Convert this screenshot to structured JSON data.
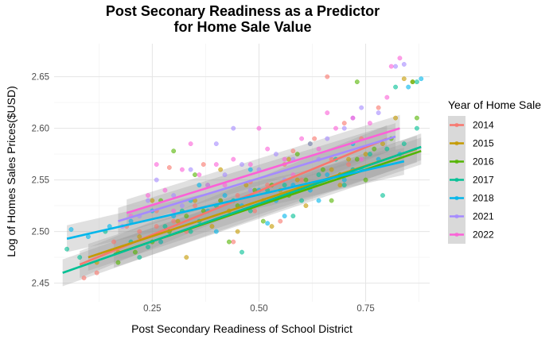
{
  "chart_data": {
    "type": "scatter",
    "title_lines": [
      "Post Seconary Readiness as a Predictor",
      "for Home Sale Value"
    ],
    "xlabel": "Post Secondary Readiness of School District",
    "ylabel": "Log of Homes Sales Prices($USD)",
    "xlim": [
      0.02,
      0.9
    ],
    "ylim": [
      2.432,
      2.682
    ],
    "x_ticks": [
      0.25,
      0.5,
      0.75
    ],
    "x_tick_labels": [
      "0.25",
      "0.50",
      "0.75"
    ],
    "y_ticks": [
      2.45,
      2.5,
      2.55,
      2.6,
      2.65
    ],
    "y_tick_labels": [
      "2.45",
      "2.50",
      "2.55",
      "2.60",
      "2.65"
    ],
    "grid": true,
    "smooth": "linear fit with confidence band per year",
    "legend": {
      "title": "Year of Home Sale",
      "position": "right"
    },
    "series": [
      {
        "name": "2014",
        "color": "#F8766D",
        "fit": {
          "x": [
            0.08,
            0.8
          ],
          "y": [
            2.468,
            2.59
          ]
        },
        "points": [
          [
            0.09,
            2.455
          ],
          [
            0.12,
            2.46
          ],
          [
            0.16,
            2.49
          ],
          [
            0.22,
            2.5
          ],
          [
            0.26,
            2.52
          ],
          [
            0.3,
            2.51
          ],
          [
            0.33,
            2.5
          ],
          [
            0.37,
            2.565
          ],
          [
            0.41,
            2.53
          ],
          [
            0.45,
            2.535
          ],
          [
            0.49,
            2.52
          ],
          [
            0.52,
            2.545
          ],
          [
            0.56,
            2.565
          ],
          [
            0.6,
            2.55
          ],
          [
            0.63,
            2.59
          ],
          [
            0.67,
            2.57
          ],
          [
            0.7,
            2.605
          ],
          [
            0.74,
            2.59
          ],
          [
            0.78,
            2.62
          ],
          [
            0.26,
            2.505
          ],
          [
            0.35,
            2.525
          ],
          [
            0.48,
            2.548
          ],
          [
            0.58,
            2.578
          ],
          [
            0.66,
            2.65
          ],
          [
            0.44,
            2.49
          ],
          [
            0.55,
            2.51
          ],
          [
            0.38,
            2.545
          ],
          [
            0.29,
            2.562
          ],
          [
            0.19,
            2.505
          ],
          [
            0.71,
            2.565
          ]
        ]
      },
      {
        "name": "2015",
        "color": "#C49A00",
        "fit": {
          "x": [
            0.1,
            0.87
          ],
          "y": [
            2.475,
            2.58
          ]
        },
        "points": [
          [
            0.12,
            2.47
          ],
          [
            0.17,
            2.48
          ],
          [
            0.22,
            2.495
          ],
          [
            0.27,
            2.49
          ],
          [
            0.31,
            2.51
          ],
          [
            0.35,
            2.53
          ],
          [
            0.39,
            2.505
          ],
          [
            0.43,
            2.52
          ],
          [
            0.47,
            2.545
          ],
          [
            0.51,
            2.53
          ],
          [
            0.55,
            2.54
          ],
          [
            0.59,
            2.55
          ],
          [
            0.63,
            2.545
          ],
          [
            0.67,
            2.56
          ],
          [
            0.71,
            2.57
          ],
          [
            0.75,
            2.575
          ],
          [
            0.79,
            2.585
          ],
          [
            0.82,
            2.61
          ],
          [
            0.86,
            2.645
          ],
          [
            0.84,
            2.648
          ],
          [
            0.25,
            2.53
          ],
          [
            0.41,
            2.56
          ],
          [
            0.53,
            2.505
          ],
          [
            0.61,
            2.525
          ],
          [
            0.69,
            2.545
          ],
          [
            0.33,
            2.475
          ],
          [
            0.45,
            2.5
          ],
          [
            0.57,
            2.57
          ]
        ]
      },
      {
        "name": "2016",
        "color": "#53B400",
        "fit": {
          "x": [
            0.16,
            0.88
          ],
          "y": [
            2.478,
            2.578
          ]
        },
        "points": [
          [
            0.17,
            2.47
          ],
          [
            0.21,
            2.48
          ],
          [
            0.25,
            2.49
          ],
          [
            0.29,
            2.5
          ],
          [
            0.33,
            2.515
          ],
          [
            0.37,
            2.52
          ],
          [
            0.41,
            2.53
          ],
          [
            0.45,
            2.525
          ],
          [
            0.49,
            2.54
          ],
          [
            0.53,
            2.545
          ],
          [
            0.57,
            2.535
          ],
          [
            0.61,
            2.55
          ],
          [
            0.65,
            2.56
          ],
          [
            0.69,
            2.555
          ],
          [
            0.73,
            2.57
          ],
          [
            0.77,
            2.58
          ],
          [
            0.81,
            2.59
          ],
          [
            0.86,
            2.645
          ],
          [
            0.87,
            2.61
          ],
          [
            0.27,
            2.53
          ],
          [
            0.35,
            2.555
          ],
          [
            0.43,
            2.49
          ],
          [
            0.51,
            2.51
          ],
          [
            0.59,
            2.575
          ],
          [
            0.67,
            2.53
          ],
          [
            0.75,
            2.55
          ],
          [
            0.3,
            2.578
          ],
          [
            0.62,
            2.585
          ],
          [
            0.73,
            2.645
          ]
        ]
      },
      {
        "name": "2017",
        "color": "#00C094",
        "fit": {
          "x": [
            0.04,
            0.88
          ],
          "y": [
            2.46,
            2.582
          ]
        },
        "points": [
          [
            0.05,
            2.483
          ],
          [
            0.08,
            2.475
          ],
          [
            0.14,
            2.5
          ],
          [
            0.2,
            2.49
          ],
          [
            0.24,
            2.485
          ],
          [
            0.28,
            2.505
          ],
          [
            0.32,
            2.52
          ],
          [
            0.36,
            2.51
          ],
          [
            0.4,
            2.525
          ],
          [
            0.44,
            2.53
          ],
          [
            0.48,
            2.52
          ],
          [
            0.52,
            2.54
          ],
          [
            0.56,
            2.545
          ],
          [
            0.6,
            2.53
          ],
          [
            0.64,
            2.555
          ],
          [
            0.68,
            2.57
          ],
          [
            0.72,
            2.56
          ],
          [
            0.76,
            2.575
          ],
          [
            0.8,
            2.58
          ],
          [
            0.84,
            2.585
          ],
          [
            0.87,
            2.6
          ],
          [
            0.22,
            2.475
          ],
          [
            0.34,
            2.5
          ],
          [
            0.46,
            2.48
          ],
          [
            0.58,
            2.515
          ],
          [
            0.7,
            2.545
          ],
          [
            0.82,
            2.64
          ],
          [
            0.87,
            2.645
          ],
          [
            0.79,
            2.535
          ]
        ]
      },
      {
        "name": "2018",
        "color": "#00B6EB",
        "fit": {
          "x": [
            0.05,
            0.84
          ],
          "y": [
            2.493,
            2.568
          ]
        },
        "points": [
          [
            0.06,
            2.502
          ],
          [
            0.1,
            2.495
          ],
          [
            0.15,
            2.505
          ],
          [
            0.2,
            2.51
          ],
          [
            0.25,
            2.52
          ],
          [
            0.3,
            2.515
          ],
          [
            0.34,
            2.53
          ],
          [
            0.38,
            2.52
          ],
          [
            0.42,
            2.535
          ],
          [
            0.46,
            2.525
          ],
          [
            0.5,
            2.54
          ],
          [
            0.54,
            2.53
          ],
          [
            0.58,
            2.545
          ],
          [
            0.62,
            2.54
          ],
          [
            0.66,
            2.555
          ],
          [
            0.7,
            2.55
          ],
          [
            0.74,
            2.56
          ],
          [
            0.78,
            2.57
          ],
          [
            0.83,
            2.575
          ],
          [
            0.85,
            2.64
          ],
          [
            0.88,
            2.648
          ],
          [
            0.27,
            2.49
          ],
          [
            0.4,
            2.5
          ],
          [
            0.48,
            2.56
          ],
          [
            0.56,
            2.515
          ],
          [
            0.64,
            2.53
          ],
          [
            0.72,
            2.585
          ],
          [
            0.36,
            2.545
          ],
          [
            0.52,
            2.508
          ]
        ]
      },
      {
        "name": "2021",
        "color": "#A58AFF",
        "fit": {
          "x": [
            0.17,
            0.82
          ],
          "y": [
            2.51,
            2.592
          ]
        },
        "points": [
          [
            0.18,
            2.505
          ],
          [
            0.22,
            2.515
          ],
          [
            0.26,
            2.55
          ],
          [
            0.3,
            2.535
          ],
          [
            0.34,
            2.56
          ],
          [
            0.38,
            2.545
          ],
          [
            0.42,
            2.555
          ],
          [
            0.46,
            2.565
          ],
          [
            0.5,
            2.56
          ],
          [
            0.54,
            2.575
          ],
          [
            0.58,
            2.57
          ],
          [
            0.62,
            2.585
          ],
          [
            0.66,
            2.59
          ],
          [
            0.7,
            2.6
          ],
          [
            0.74,
            2.62
          ],
          [
            0.78,
            2.615
          ],
          [
            0.82,
            2.66
          ],
          [
            0.84,
            2.662
          ],
          [
            0.24,
            2.53
          ],
          [
            0.32,
            2.525
          ],
          [
            0.4,
            2.585
          ],
          [
            0.48,
            2.54
          ],
          [
            0.56,
            2.55
          ],
          [
            0.64,
            2.57
          ],
          [
            0.72,
            2.61
          ],
          [
            0.44,
            2.6
          ]
        ]
      },
      {
        "name": "2022",
        "color": "#FB61D7",
        "fit": {
          "x": [
            0.19,
            0.83
          ],
          "y": [
            2.518,
            2.6
          ]
        },
        "points": [
          [
            0.2,
            2.515
          ],
          [
            0.24,
            2.535
          ],
          [
            0.28,
            2.54
          ],
          [
            0.32,
            2.56
          ],
          [
            0.36,
            2.555
          ],
          [
            0.4,
            2.565
          ],
          [
            0.44,
            2.57
          ],
          [
            0.48,
            2.565
          ],
          [
            0.52,
            2.58
          ],
          [
            0.56,
            2.57
          ],
          [
            0.6,
            2.59
          ],
          [
            0.64,
            2.58
          ],
          [
            0.68,
            2.6
          ],
          [
            0.72,
            2.61
          ],
          [
            0.76,
            2.605
          ],
          [
            0.8,
            2.63
          ],
          [
            0.83,
            2.668
          ],
          [
            0.81,
            2.66
          ],
          [
            0.26,
            2.565
          ],
          [
            0.34,
            2.585
          ],
          [
            0.42,
            2.545
          ],
          [
            0.5,
            2.6
          ],
          [
            0.58,
            2.555
          ],
          [
            0.66,
            2.615
          ],
          [
            0.74,
            2.57
          ],
          [
            0.3,
            2.52
          ]
        ]
      }
    ]
  }
}
